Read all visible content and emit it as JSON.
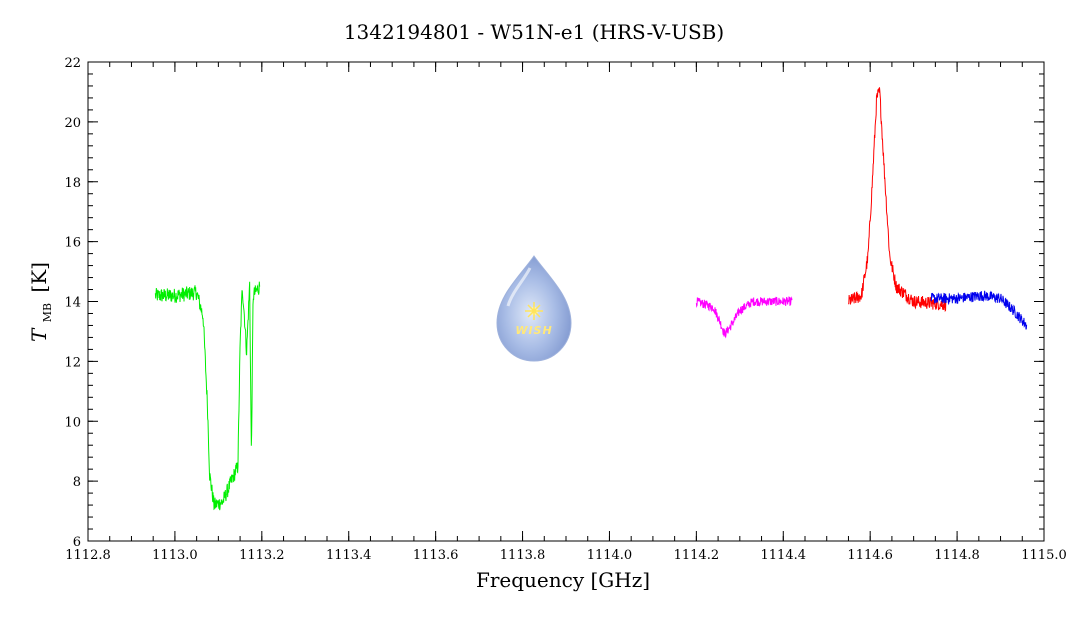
{
  "chart_data": {
    "type": "line",
    "title": "1342194801 - W51N-e1 (HRS-V-USB)",
    "xlabel": "Frequency [GHz]",
    "ylabel": {
      "main": "T",
      "subscript": "MB",
      "unit": "[K]"
    },
    "xlim": [
      1112.8,
      1115.0
    ],
    "ylim": [
      6,
      22
    ],
    "x_ticks": [
      "1112.8",
      "1113.0",
      "1113.2",
      "1113.4",
      "1113.6",
      "1113.8",
      "1114.0",
      "1114.2",
      "1114.4",
      "1114.6",
      "1114.8",
      "1115.0"
    ],
    "y_ticks": [
      "6",
      "8",
      "10",
      "12",
      "14",
      "16",
      "18",
      "20",
      "22"
    ],
    "grid": false,
    "series": [
      {
        "color": "#00ee00",
        "x_range": [
          1112.955,
          1113.195
        ],
        "profile": [
          [
            1112.955,
            14.2
          ],
          [
            1113.0,
            14.2
          ],
          [
            1113.05,
            14.3
          ],
          [
            1113.065,
            13.5
          ],
          [
            1113.075,
            10.5
          ],
          [
            1113.08,
            8.2
          ],
          [
            1113.09,
            7.2
          ],
          [
            1113.11,
            7.3
          ],
          [
            1113.13,
            8.0
          ],
          [
            1113.145,
            8.5
          ],
          [
            1113.15,
            12.5
          ],
          [
            1113.155,
            14.5
          ],
          [
            1113.16,
            13.5
          ],
          [
            1113.165,
            12.3
          ],
          [
            1113.172,
            14.6
          ],
          [
            1113.176,
            8.8
          ],
          [
            1113.18,
            14.2
          ],
          [
            1113.195,
            14.5
          ]
        ],
        "noise": 0.25
      },
      {
        "color": "#ff00ff",
        "x_range": [
          1114.2,
          1114.42
        ],
        "profile": [
          [
            1114.2,
            14.0
          ],
          [
            1114.24,
            13.8
          ],
          [
            1114.255,
            13.3
          ],
          [
            1114.265,
            12.9
          ],
          [
            1114.28,
            13.2
          ],
          [
            1114.3,
            13.7
          ],
          [
            1114.33,
            14.0
          ],
          [
            1114.42,
            14.0
          ]
        ],
        "noise": 0.15
      },
      {
        "color": "#ff0000",
        "x_range": [
          1114.55,
          1114.775
        ],
        "profile": [
          [
            1114.55,
            14.0
          ],
          [
            1114.58,
            14.2
          ],
          [
            1114.595,
            15.5
          ],
          [
            1114.605,
            18.0
          ],
          [
            1114.615,
            20.8
          ],
          [
            1114.622,
            21.0
          ],
          [
            1114.632,
            18.5
          ],
          [
            1114.645,
            15.5
          ],
          [
            1114.66,
            14.5
          ],
          [
            1114.7,
            14.0
          ],
          [
            1114.775,
            13.9
          ]
        ],
        "noise": 0.22
      },
      {
        "color": "#0000ee",
        "x_range": [
          1114.74,
          1114.96
        ],
        "profile": [
          [
            1114.74,
            14.1
          ],
          [
            1114.8,
            14.1
          ],
          [
            1114.86,
            14.2
          ],
          [
            1114.9,
            14.1
          ],
          [
            1114.93,
            13.7
          ],
          [
            1114.96,
            13.2
          ]
        ],
        "noise": 0.18
      }
    ],
    "logo": {
      "name": "wish-logo",
      "text": "WISH"
    }
  }
}
